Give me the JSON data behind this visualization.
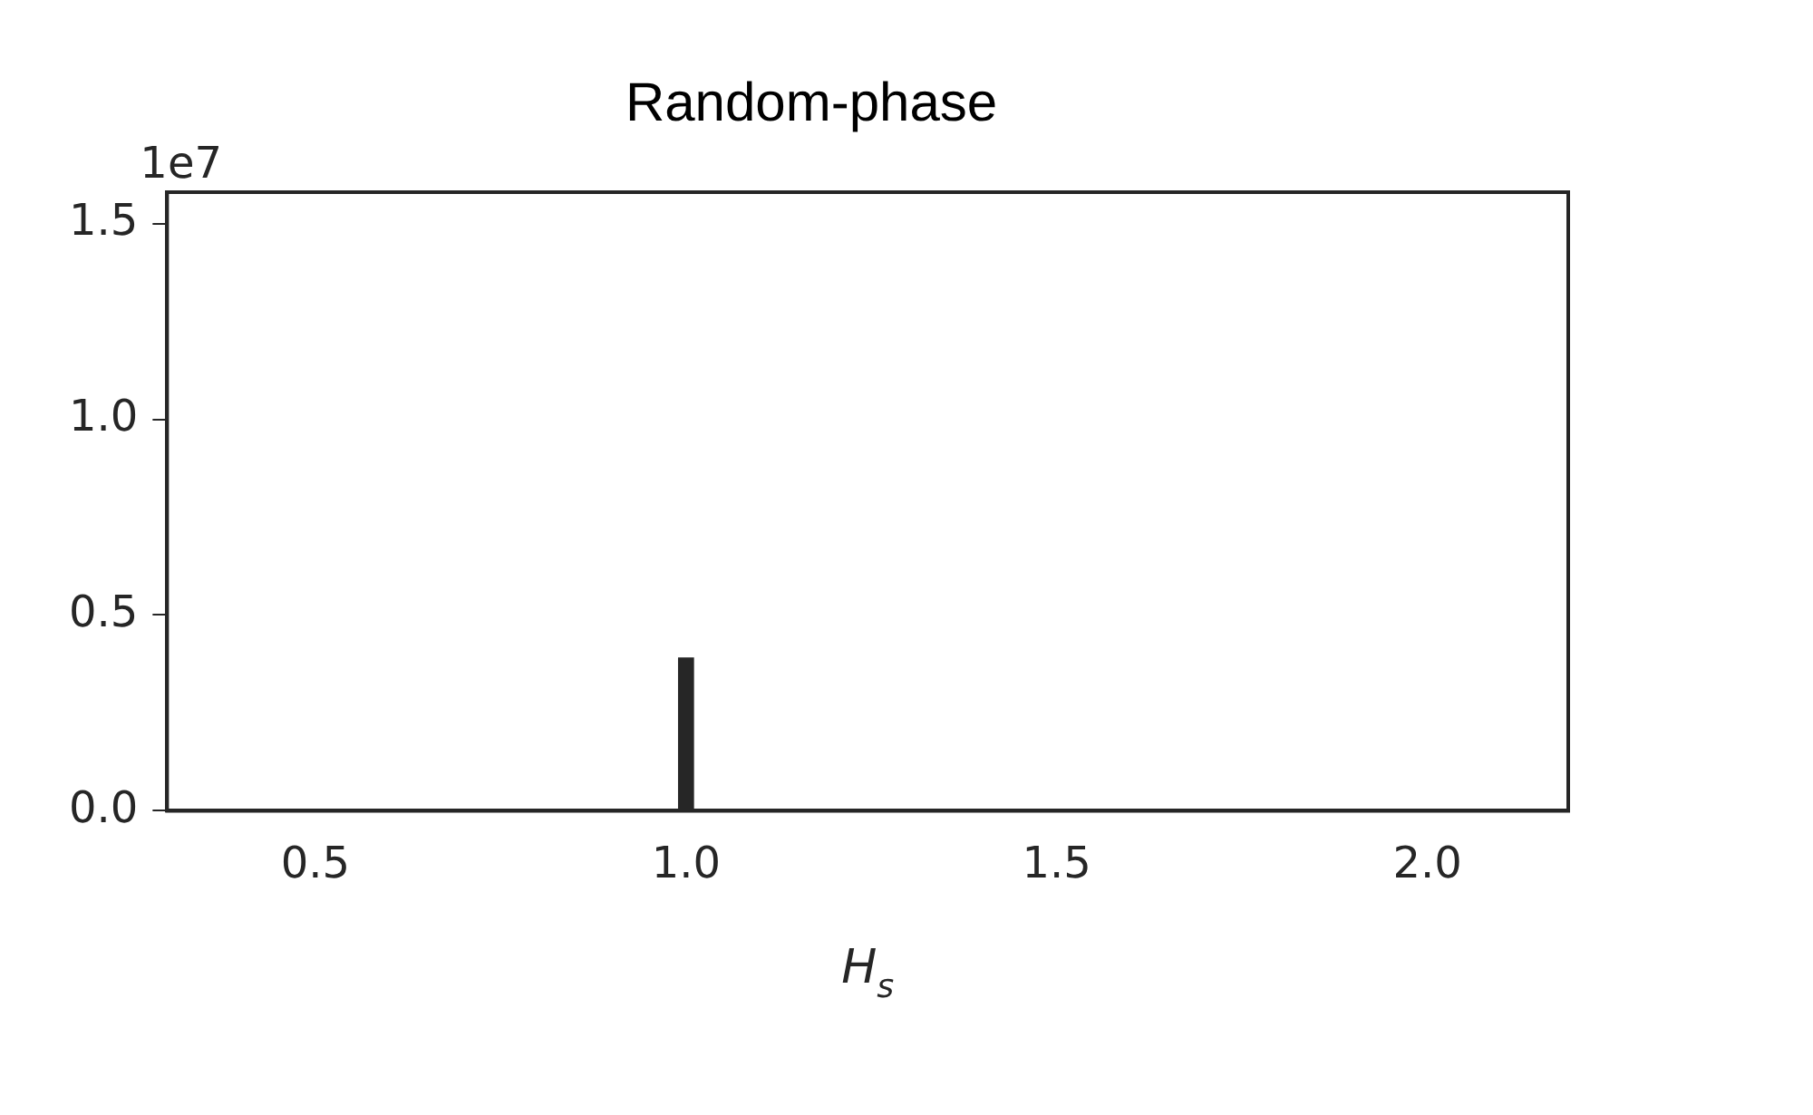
{
  "chart_data": {
    "type": "histogram",
    "title": "Random-phase",
    "xlabel": "H$_{s}$",
    "annotations": [
      "1e7"
    ],
    "bins": [
      0.99,
      1.01
    ],
    "values": [
      0.39
    ],
    "color": "#262626",
    "xlim": [
      0.3,
      2.19
    ],
    "xticks": [
      0.5,
      {
        "value": 1,
        "label": "1.0"
      },
      1.5,
      {
        "value": 2,
        "label": "2.0"
      }
    ],
    "ylim": [
      0,
      1.58
    ],
    "yticks": [
      {
        "value": 0,
        "label": "0.0"
      },
      0.5,
      {
        "value": 1,
        "label": "1.0"
      },
      1.5
    ],
    "grid": false,
    "legend": false
  }
}
